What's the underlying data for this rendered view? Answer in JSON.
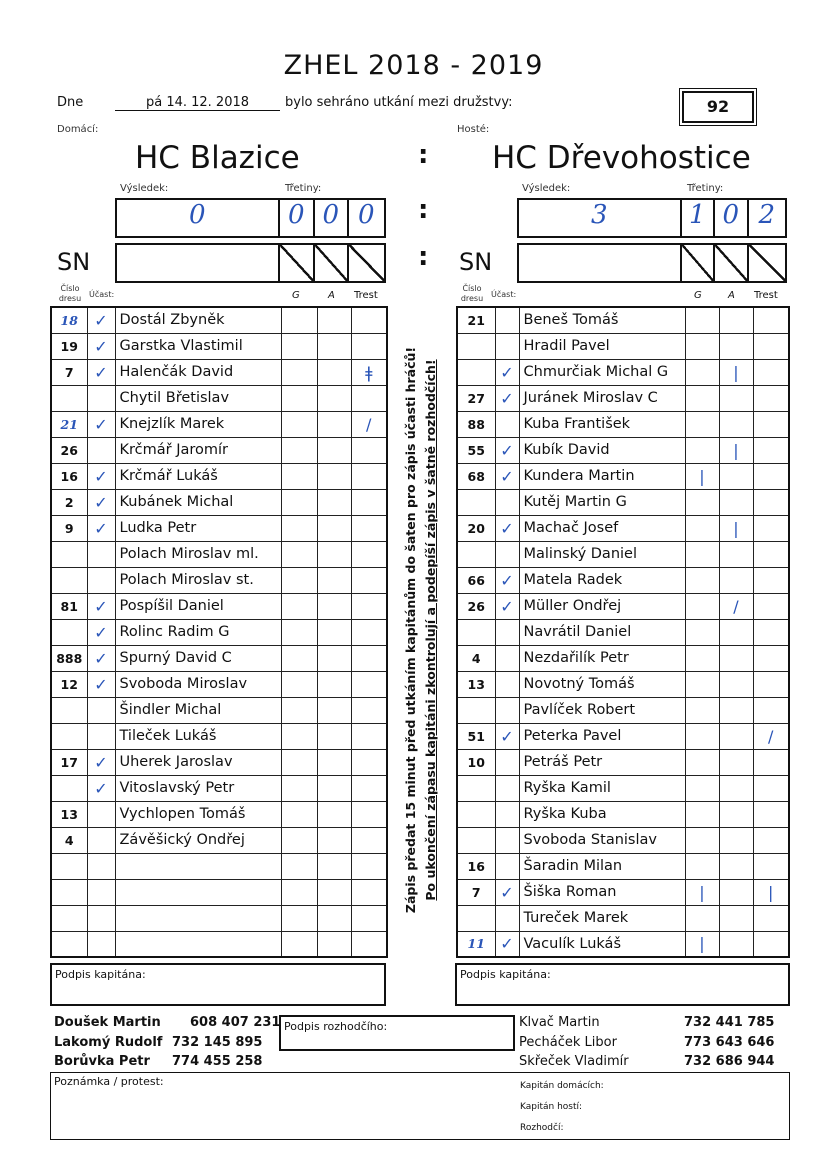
{
  "title": "ZHEL 2018 - 2019",
  "date_label": "Dne",
  "date": "pá 14. 12. 2018",
  "played_label": "bylo sehráno utkání mezi družstvy:",
  "match_no": "92",
  "home_label": "Domácí:",
  "away_label": "Hosté:",
  "home": {
    "team": "HC Blazice",
    "result_label": "Výsledek:",
    "periods_label": "Třetiny:",
    "score": "0",
    "periods": [
      "0",
      "0",
      "0"
    ],
    "sn": "SN"
  },
  "away": {
    "team": "HC Dřevohostice",
    "result_label": "Výsledek:",
    "periods_label": "Třetiny:",
    "score": "3",
    "periods": [
      "1",
      "0",
      "2"
    ],
    "sn": "SN"
  },
  "cols": {
    "number": "Číslo dresu",
    "attendance": "Účast:",
    "g": "G",
    "a": "A",
    "trest": "Trest"
  },
  "home_players": [
    [
      "18",
      "✓",
      "Dostál Zbyněk",
      "",
      "",
      ""
    ],
    [
      "19",
      "✓",
      "Garstka Vlastimil",
      "",
      "",
      ""
    ],
    [
      "7",
      "✓",
      "Halenčák David",
      "",
      "",
      "ǂ"
    ],
    [
      "",
      "",
      "Chytil Břetislav",
      "",
      "",
      ""
    ],
    [
      "21",
      "✓",
      "Knejzlík Marek",
      "",
      "",
      "/"
    ],
    [
      "26",
      "",
      "Krčmář Jaromír",
      "",
      "",
      ""
    ],
    [
      "16",
      "✓",
      "Krčmář Lukáš",
      "",
      "",
      ""
    ],
    [
      "2",
      "✓",
      "Kubánek Michal",
      "",
      "",
      ""
    ],
    [
      "9",
      "✓",
      "Ludka Petr",
      "",
      "",
      ""
    ],
    [
      "",
      "",
      "Polach Miroslav ml.",
      "",
      "",
      ""
    ],
    [
      "",
      "",
      "Polach Miroslav st.",
      "",
      "",
      ""
    ],
    [
      "81",
      "✓",
      "Pospíšil Daniel",
      "",
      "",
      ""
    ],
    [
      "",
      "✓",
      "Rolinc Radim G",
      "",
      "",
      ""
    ],
    [
      "888",
      "✓",
      "Spurný David C",
      "",
      "",
      ""
    ],
    [
      "12",
      "✓",
      "Svoboda Miroslav",
      "",
      "",
      ""
    ],
    [
      "",
      "",
      "Šindler Michal",
      "",
      "",
      ""
    ],
    [
      "",
      "",
      "Tileček Lukáš",
      "",
      "",
      ""
    ],
    [
      "17",
      "✓",
      "Uherek Jaroslav",
      "",
      "",
      ""
    ],
    [
      "",
      "✓",
      "Vitoslavský Petr",
      "",
      "",
      ""
    ],
    [
      "13",
      "",
      "Vychlopen Tomáš",
      "",
      "",
      ""
    ],
    [
      "4",
      "",
      "Závěšický Ondřej",
      "",
      "",
      ""
    ],
    [
      "",
      "",
      "",
      "",
      "",
      ""
    ],
    [
      "",
      "",
      "",
      "",
      "",
      ""
    ],
    [
      "",
      "",
      "",
      "",
      "",
      ""
    ],
    [
      "",
      "",
      "",
      "",
      "",
      ""
    ]
  ],
  "away_players": [
    [
      "21",
      "",
      "Beneš Tomáš",
      "",
      "",
      ""
    ],
    [
      "",
      "",
      "Hradil Pavel",
      "",
      "",
      ""
    ],
    [
      "",
      "✓",
      "Chmurčiak Michal G",
      "",
      "|",
      ""
    ],
    [
      "27",
      "✓",
      "Juránek Miroslav C",
      "",
      "",
      ""
    ],
    [
      "88",
      "",
      "Kuba František",
      "",
      "",
      ""
    ],
    [
      "55",
      "✓",
      "Kubík David",
      "",
      "|",
      ""
    ],
    [
      "68",
      "✓",
      "Kundera Martin",
      "|",
      "",
      ""
    ],
    [
      "",
      "",
      "Kutěj Martin G",
      "",
      "",
      ""
    ],
    [
      "20",
      "✓",
      "Machač Josef",
      "",
      "|",
      ""
    ],
    [
      "",
      "",
      "Malinský Daniel",
      "",
      "",
      ""
    ],
    [
      "66",
      "✓",
      "Matela Radek",
      "",
      "",
      ""
    ],
    [
      "26",
      "✓",
      "Müller Ondřej",
      "",
      "/",
      ""
    ],
    [
      "",
      "",
      "Navrátil Daniel",
      "",
      "",
      ""
    ],
    [
      "4",
      "",
      "Nezdařilík Petr",
      "",
      "",
      ""
    ],
    [
      "13",
      "",
      "Novotný Tomáš",
      "",
      "",
      ""
    ],
    [
      "",
      "",
      "Pavlíček Robert",
      "",
      "",
      ""
    ],
    [
      "51",
      "✓",
      "Peterka Pavel",
      "",
      "",
      "/"
    ],
    [
      "10",
      "",
      "Petráš Petr",
      "",
      "",
      ""
    ],
    [
      "",
      "",
      "Ryška Kamil",
      "",
      "",
      ""
    ],
    [
      "",
      "",
      "Ryška Kuba",
      "",
      "",
      ""
    ],
    [
      "",
      "",
      "Svoboda Stanislav",
      "",
      "",
      ""
    ],
    [
      "16",
      "",
      "Šaradin Milan",
      "",
      "",
      ""
    ],
    [
      "7",
      "✓",
      "Šiška Roman",
      "|",
      "",
      "|"
    ],
    [
      "",
      "",
      "Tureček Marek",
      "",
      "",
      ""
    ],
    [
      "11",
      "✓",
      "Vaculík Lukáš",
      "|",
      "",
      ""
    ]
  ],
  "vertical_notes": [
    "Zápis předat 15 minut před utkáním kapitánům do šaten pro zápis účasti hráčů!",
    "Po ukončení zápasu kapitáni zkontrolují a podepíší zápis v šatně rozhodčích!"
  ],
  "captain_sign_label": "Podpis kapitána:",
  "referee_sign_label": "Podpis rozhodčího:",
  "home_contacts": [
    [
      "Doušek Martin",
      "608 407 231"
    ],
    [
      "Lakomý Rudolf",
      "732 145 895"
    ],
    [
      "Borůvka Petr",
      "774 455 258"
    ]
  ],
  "away_contacts": [
    [
      "Klvač Martin",
      "732 441 785"
    ],
    [
      "Pecháček Libor",
      "773 643 646"
    ],
    [
      "Skřeček Vladimír",
      "732 686 944"
    ]
  ],
  "note_label": "Poznámka / protest:",
  "sign_lines": [
    "Kapitán domácích:",
    "Kapitán hostí:",
    "Rozhodčí:"
  ],
  "colors": {
    "ink": "#2a55b8"
  }
}
